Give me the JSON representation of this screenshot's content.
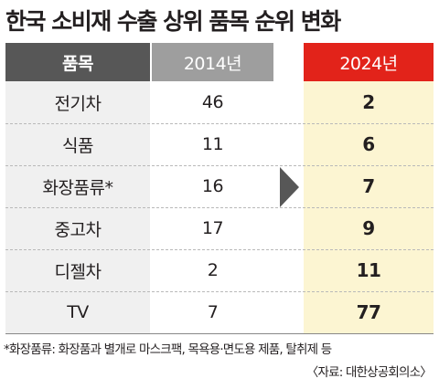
{
  "chart_data": {
    "type": "table",
    "title": "한국 소비재 수출 상위 품목 순위 변화",
    "columns": [
      "품목",
      "2014년",
      "2024년"
    ],
    "rows": [
      {
        "item": "전기차",
        "rank_2014": "46",
        "rank_2024": "2"
      },
      {
        "item": "식품",
        "rank_2014": "11",
        "rank_2024": "6"
      },
      {
        "item": "화장품류*",
        "rank_2014": "16",
        "rank_2024": "7"
      },
      {
        "item": "중고차",
        "rank_2014": "17",
        "rank_2024": "9"
      },
      {
        "item": "디젤차",
        "rank_2014": "2",
        "rank_2024": "11"
      },
      {
        "item": "TV",
        "rank_2014": "7",
        "rank_2024": "77"
      }
    ],
    "note": "*화장품류: 화장품과 별개로 마스크팩, 목욕용·면도용 제품, 탈취제 등",
    "source": "〈자료: 대한상공회의소〉"
  },
  "colors": {
    "header_item": "#575757",
    "header_2014": "#9e9e9e",
    "header_2024": "#e2231a",
    "column_2024_bg": "#fcf5d2",
    "item_column_bg": "#f0f0f0",
    "arrow": "#575757"
  },
  "icons": {
    "transition_arrow": "right-triangle-icon"
  }
}
